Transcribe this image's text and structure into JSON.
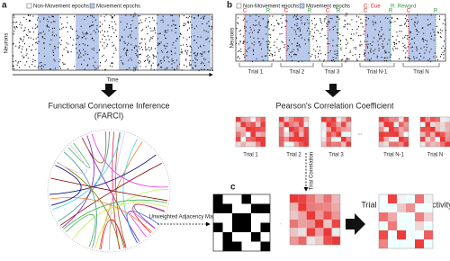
{
  "panels": {
    "a": {
      "label": "a",
      "legend": [
        "Non-Movement epochs",
        "Movement epochs"
      ],
      "y_label": "Neurons",
      "x_label": "Time",
      "break": "//",
      "step": "Functional Connectome Inference",
      "step_sub": "(FARCI)"
    },
    "b": {
      "label": "b",
      "legend": [
        "Non-Movement epochs",
        "Movement epochs"
      ],
      "cue": "C: Cue",
      "reward": "R: Reward",
      "marker_c": "C",
      "marker_r": "R",
      "y_label": "Neurons",
      "break": "//",
      "raster_trials": [
        "Trial 1",
        "Trial 2",
        "Trial 3",
        "Trial N-1",
        "Trial N"
      ],
      "step": "Pearson's Correlation Coefficient",
      "ellipsis": "...",
      "matrix_trials": [
        "Trial 1",
        "Trial 2",
        "Trial 3",
        "Trial N-1",
        "Trial N"
      ]
    },
    "c": {
      "label": "c",
      "arrow_label": "Trial Correlation",
      "adjacency": "Unweighted Adjacency Matrix",
      "dot": "·",
      "result": "Trial Connectome Activity"
    }
  }
}
